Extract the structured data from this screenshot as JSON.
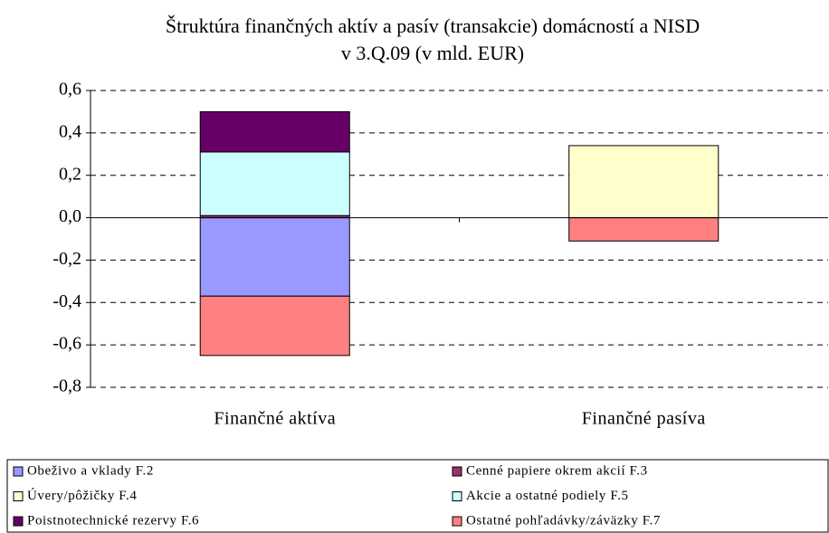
{
  "chart_data": {
    "type": "stacked_bar",
    "title": "Štruktúra finančných aktív a pasív (transakcie) domácností a NISD v 3.Q.09 (v mld. EUR)",
    "categories": [
      "Finančné aktíva",
      "Finančné pasíva"
    ],
    "series": [
      {
        "name": "Obeživo a vklady F.2",
        "color": "#9999ff",
        "values": [
          -0.37,
          0
        ]
      },
      {
        "name": "Cenné papiere okrem akcií F.3",
        "color": "#993366",
        "values": [
          0.01,
          0
        ]
      },
      {
        "name": "Úvery/pôžičky F.4",
        "color": "#ffffcc",
        "values": [
          0,
          0.34
        ]
      },
      {
        "name": "Akcie a ostatné podiely F.5",
        "color": "#ccffff",
        "values": [
          0.3,
          0
        ]
      },
      {
        "name": "Poistnotechnické rezervy F.6",
        "color": "#660066",
        "values": [
          0.19,
          0
        ]
      },
      {
        "name": "Ostatné pohľadávky/záväzky F.7",
        "color": "#ff8080",
        "values": [
          -0.28,
          -0.11
        ]
      }
    ],
    "ylim": [
      -0.8,
      0.6
    ],
    "yticks": [
      {
        "value": -0.8,
        "label": "-0,8"
      },
      {
        "value": -0.6,
        "label": "-0,6"
      },
      {
        "value": -0.4,
        "label": "-0,4"
      },
      {
        "value": -0.2,
        "label": "-0,2"
      },
      {
        "value": 0,
        "label": "0,0"
      },
      {
        "value": 0.2,
        "label": "0,2"
      },
      {
        "value": 0.4,
        "label": "0,4"
      },
      {
        "value": 0.6,
        "label": "0,6"
      }
    ],
    "grid": true,
    "legend": "bottom"
  }
}
